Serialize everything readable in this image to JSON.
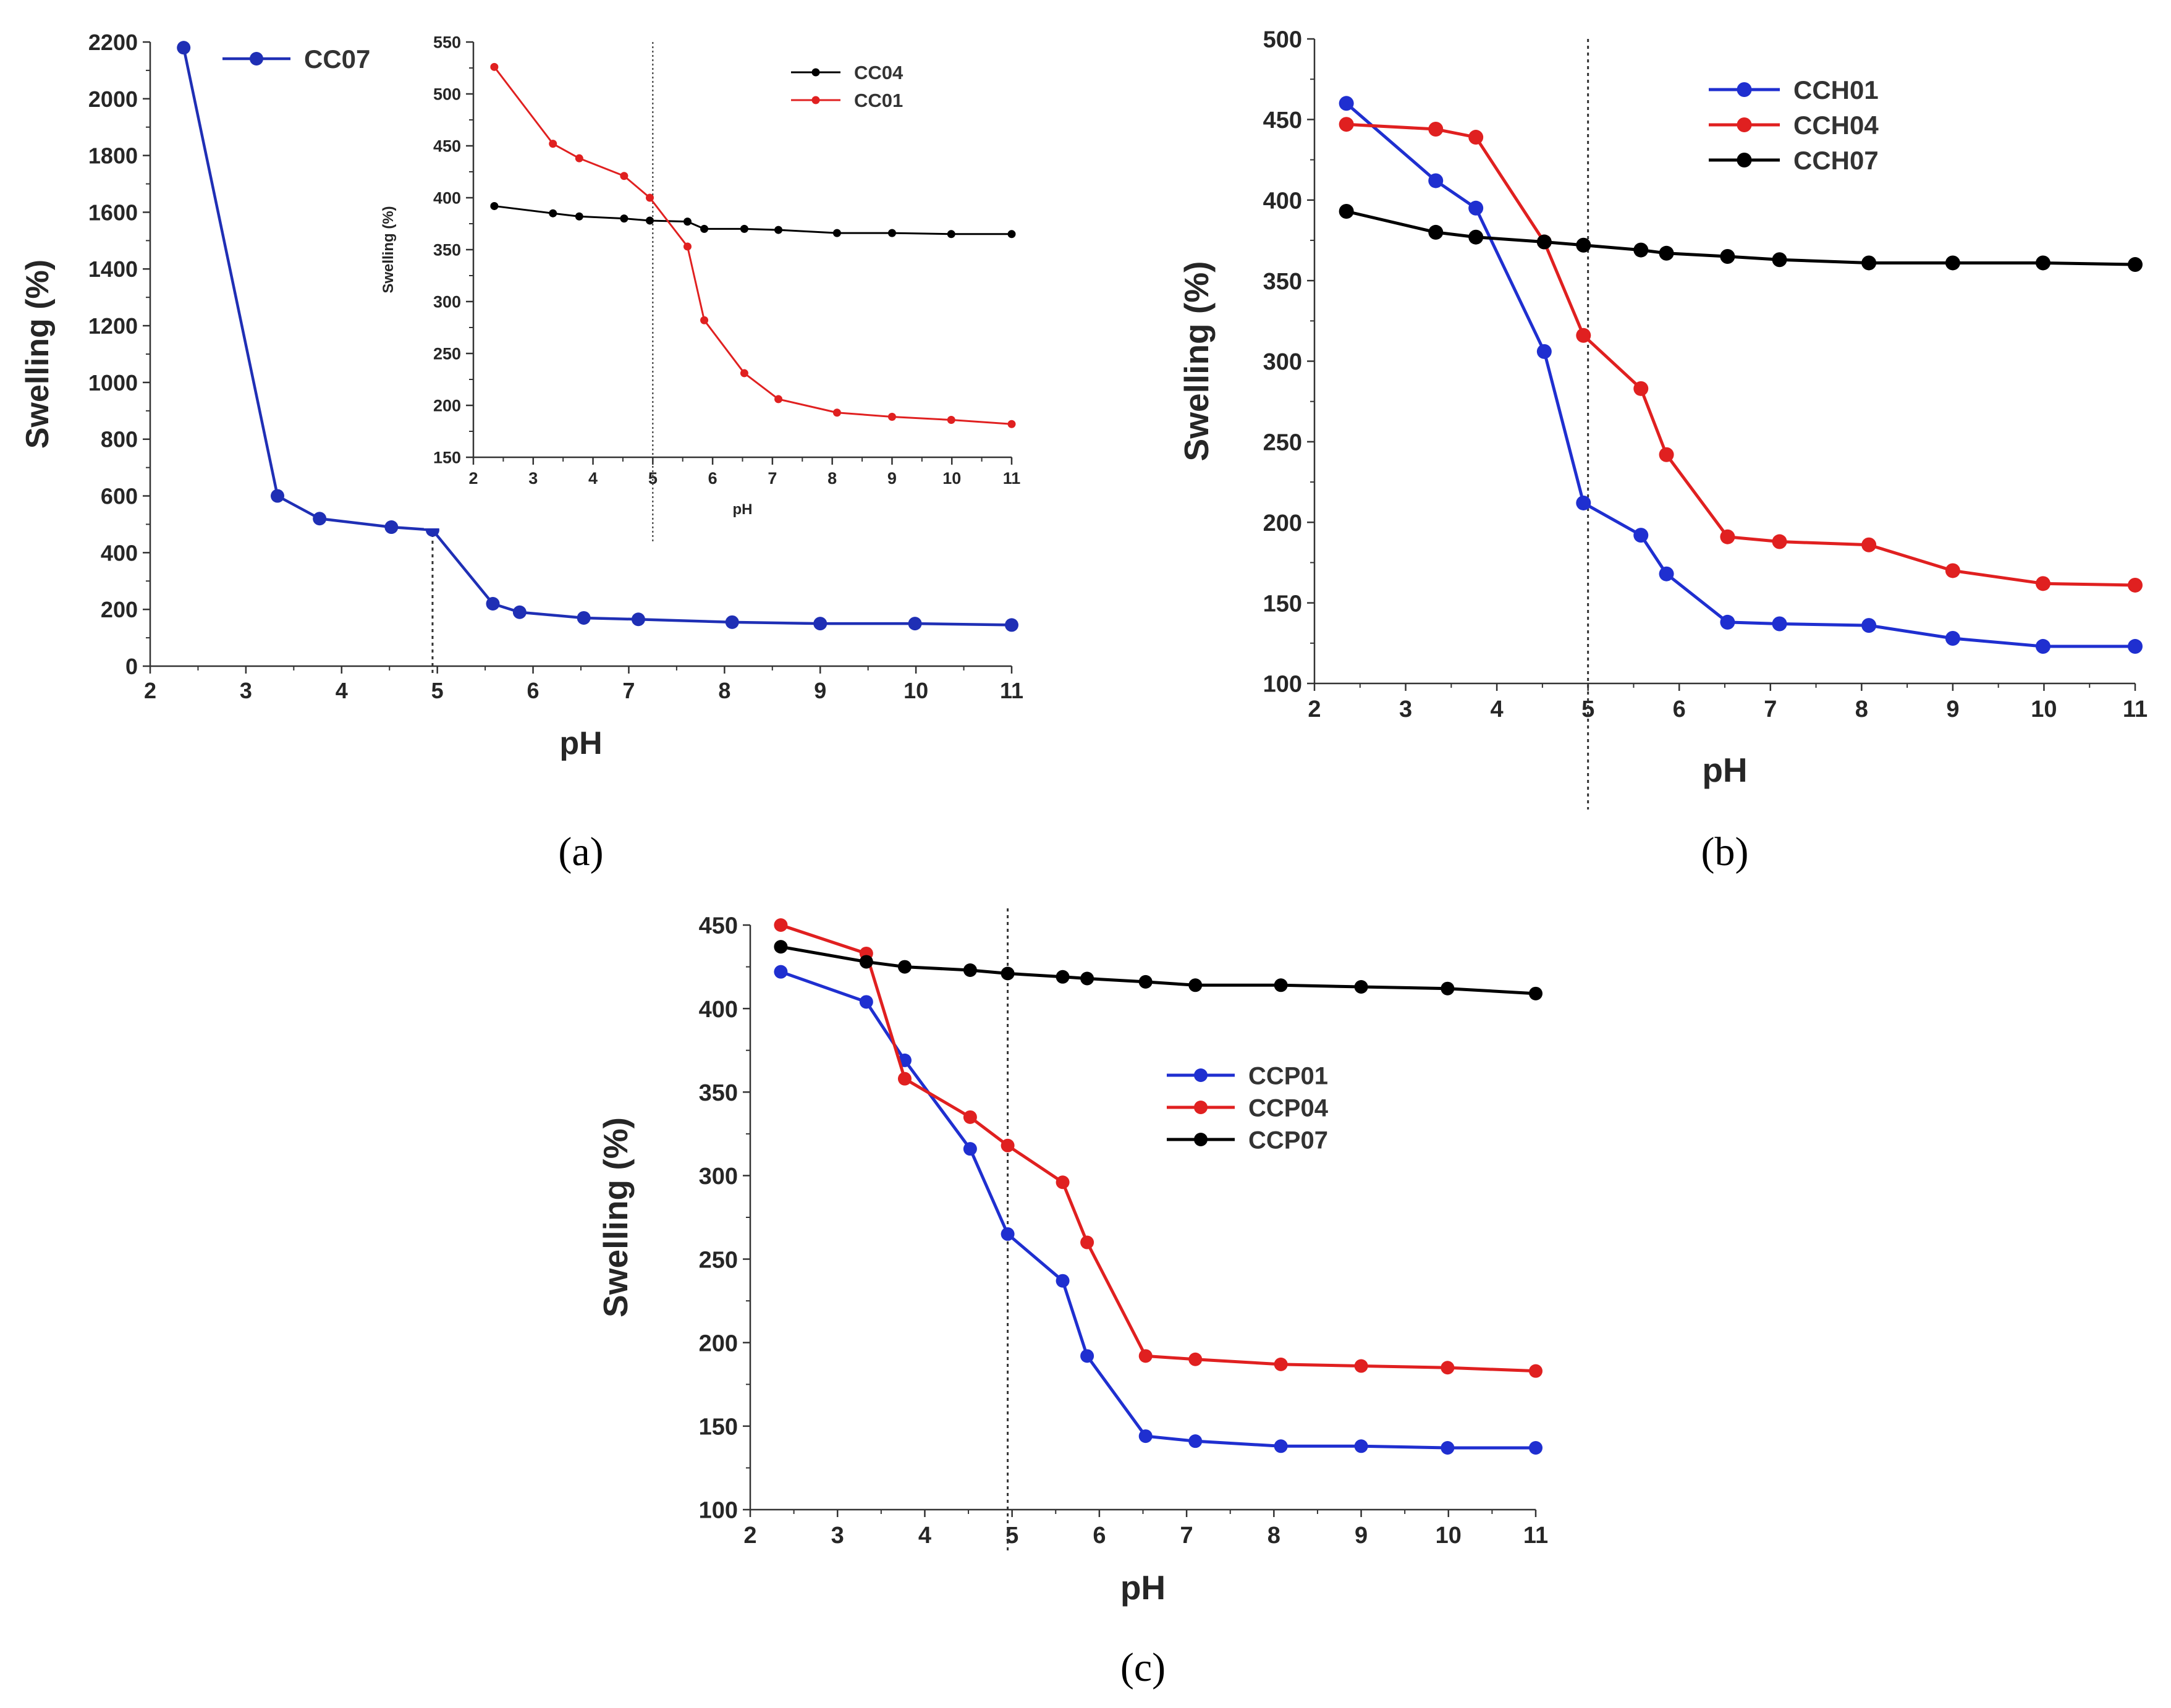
{
  "chart_data": [
    {
      "id": "a",
      "type": "line",
      "panel_label": "(a)",
      "xlabel": "pH",
      "ylabel": "Swelling (%)",
      "xlim": [
        2,
        11
      ],
      "ylim": [
        0,
        2200
      ],
      "x_ticks": [
        2,
        3,
        4,
        5,
        6,
        7,
        8,
        9,
        10,
        11
      ],
      "y_ticks": [
        0,
        200,
        400,
        600,
        800,
        1000,
        1200,
        1400,
        1600,
        1800,
        2000,
        2200
      ],
      "reference_line_x": 4.95,
      "legend_position": "top-left",
      "series": [
        {
          "name": "CC07",
          "color": "#1f2fb5",
          "x": [
            2.35,
            3.33,
            3.77,
            4.52,
            4.95,
            5.58,
            5.86,
            6.53,
            7.1,
            8.08,
            9.0,
            9.99,
            11.0
          ],
          "y": [
            2180,
            600,
            520,
            490,
            480,
            220,
            190,
            170,
            165,
            155,
            150,
            150,
            145
          ]
        }
      ],
      "inset": {
        "xlabel": "pH",
        "ylabel": "Swelling (%)",
        "xlim": [
          2,
          11
        ],
        "ylim": [
          150,
          550
        ],
        "x_ticks": [
          2,
          3,
          4,
          5,
          6,
          7,
          8,
          9,
          10,
          11
        ],
        "y_ticks": [
          150,
          200,
          250,
          300,
          350,
          400,
          450,
          500,
          550
        ],
        "reference_line_x": 5.0,
        "legend_position": "top-right",
        "series": [
          {
            "name": "CC04",
            "color": "#000000",
            "x": [
              2.35,
              3.33,
              3.77,
              4.52,
              4.95,
              5.58,
              5.86,
              6.53,
              7.1,
              8.08,
              9.0,
              9.99,
              11.0
            ],
            "y": [
              392,
              385,
              382,
              380,
              378,
              377,
              370,
              370,
              369,
              366,
              366,
              365,
              365
            ]
          },
          {
            "name": "CC01",
            "color": "#e02020",
            "x": [
              2.35,
              3.33,
              3.77,
              4.52,
              4.95,
              5.58,
              5.86,
              6.53,
              7.1,
              8.08,
              9.0,
              9.99,
              11.0
            ],
            "y": [
              526,
              452,
              438,
              421,
              400,
              353,
              282,
              231,
              206,
              193,
              189,
              186,
              182
            ]
          }
        ]
      }
    },
    {
      "id": "b",
      "type": "line",
      "panel_label": "(b)",
      "xlabel": "pH",
      "ylabel": "Swelling (%)",
      "xlim": [
        2,
        11
      ],
      "ylim": [
        100,
        500
      ],
      "x_ticks": [
        2,
        3,
        4,
        5,
        6,
        7,
        8,
        9,
        10,
        11
      ],
      "y_ticks": [
        100,
        150,
        200,
        250,
        300,
        350,
        400,
        450,
        500
      ],
      "reference_line_x": 5.0,
      "legend_position": "top-right",
      "series": [
        {
          "name": "CCH01",
          "color": "#1f2fd0",
          "x": [
            2.35,
            3.33,
            3.77,
            4.52,
            4.95,
            5.58,
            5.86,
            6.53,
            7.1,
            8.08,
            9.0,
            9.99,
            11.0
          ],
          "y": [
            460,
            412,
            395,
            306,
            212,
            192,
            168,
            138,
            137,
            136,
            128,
            123,
            123
          ]
        },
        {
          "name": "CCH04",
          "color": "#e02020",
          "x": [
            2.35,
            3.33,
            3.77,
            4.52,
            4.95,
            5.58,
            5.86,
            6.53,
            7.1,
            8.08,
            9.0,
            9.99,
            11.0
          ],
          "y": [
            447,
            444,
            439,
            374,
            316,
            283,
            242,
            191,
            188,
            186,
            170,
            162,
            161
          ]
        },
        {
          "name": "CCH07",
          "color": "#000000",
          "x": [
            2.35,
            3.33,
            3.77,
            4.52,
            4.95,
            5.58,
            5.86,
            6.53,
            7.1,
            8.08,
            9.0,
            9.99,
            11.0
          ],
          "y": [
            393,
            380,
            377,
            374,
            372,
            369,
            367,
            365,
            363,
            361,
            361,
            361,
            360
          ]
        }
      ]
    },
    {
      "id": "c",
      "type": "line",
      "panel_label": "(c)",
      "xlabel": "pH",
      "ylabel": "Swelling (%)",
      "xlim": [
        2,
        11
      ],
      "ylim": [
        100,
        450
      ],
      "x_ticks": [
        2,
        3,
        4,
        5,
        6,
        7,
        8,
        9,
        10,
        11
      ],
      "y_ticks": [
        100,
        150,
        200,
        250,
        300,
        350,
        400,
        450
      ],
      "reference_line_x": 4.95,
      "legend_position": "center-right",
      "series": [
        {
          "name": "CCP01",
          "color": "#1f2fd0",
          "x": [
            2.35,
            3.33,
            3.77,
            4.52,
            4.95,
            5.58,
            5.86,
            6.53,
            7.1,
            8.08,
            9.0,
            9.99,
            11.0
          ],
          "y": [
            422,
            404,
            369,
            316,
            265,
            237,
            192,
            144,
            141,
            138,
            138,
            137,
            137
          ]
        },
        {
          "name": "CCP04",
          "color": "#e02020",
          "x": [
            2.35,
            3.33,
            3.77,
            4.52,
            4.95,
            5.58,
            5.86,
            6.53,
            7.1,
            8.08,
            9.0,
            9.99,
            11.0
          ],
          "y": [
            450,
            433,
            358,
            335,
            318,
            296,
            260,
            192,
            190,
            187,
            186,
            185,
            183
          ]
        },
        {
          "name": "CCP07",
          "color": "#000000",
          "x": [
            2.35,
            3.33,
            3.77,
            4.52,
            4.95,
            5.58,
            5.86,
            6.53,
            7.1,
            8.08,
            9.0,
            9.99,
            11.0
          ],
          "y": [
            437,
            428,
            425,
            423,
            421,
            419,
            418,
            416,
            414,
            414,
            413,
            412,
            409
          ]
        }
      ]
    }
  ]
}
